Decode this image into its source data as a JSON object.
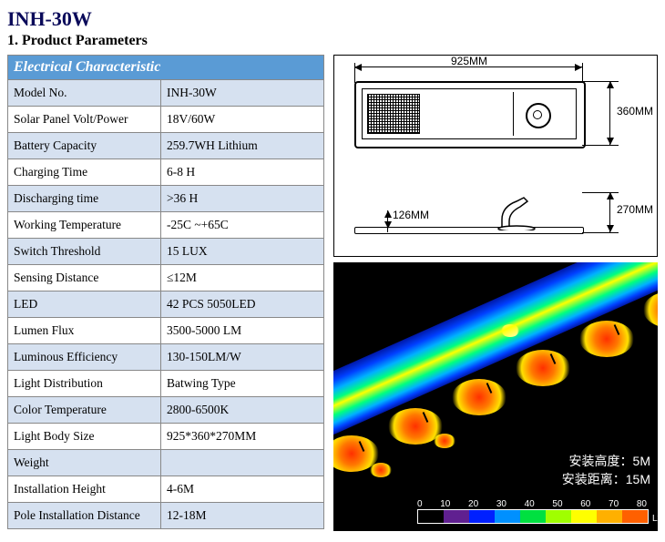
{
  "title": "INH-30W",
  "section": "1. Product Parameters",
  "table": {
    "header": "Electrical Characteristic",
    "rows": [
      {
        "label": "Model No.",
        "value": "INH-30W"
      },
      {
        "label": "Solar Panel Volt/Power",
        "value": "18V/60W"
      },
      {
        "label": "Battery Capacity",
        "value": "259.7WH Lithium"
      },
      {
        "label": "Charging Time",
        "value": "6-8 H"
      },
      {
        "label": "Discharging time",
        "value": ">36 H"
      },
      {
        "label": "Working Temperature",
        "value": "-25C ~+65C"
      },
      {
        "label": "Switch Threshold",
        "value": "15 LUX"
      },
      {
        "label": "Sensing Distance",
        "value": "≤12M"
      },
      {
        "label": "LED",
        "value": "42 PCS 5050LED"
      },
      {
        "label": "Lumen Flux",
        "value": "3500-5000 LM"
      },
      {
        "label": "Luminous Efficiency",
        "value": "130-150LM/W"
      },
      {
        "label": "Light Distribution",
        "value": "Batwing Type"
      },
      {
        "label": "Color Temperature",
        "value": "2800-6500K"
      },
      {
        "label": "Light Body Size",
        "value": "925*360*270MM"
      },
      {
        "label": "Weight",
        "value": ""
      },
      {
        "label": "Installation Height",
        "value": "4-6M"
      },
      {
        "label": "Pole Installation Distance",
        "value": "12-18M"
      }
    ]
  },
  "drawing": {
    "width_label": "925MM",
    "height_label": "360MM",
    "side_height_label": "270MM",
    "small_dim_label": "126MM"
  },
  "heatmap": {
    "line1": "安装高度：5M",
    "line2": "安装距离：15M",
    "scale_colors": [
      "#000000",
      "#602090",
      "#0020ff",
      "#0090ff",
      "#00e040",
      "#a0ff00",
      "#ffff00",
      "#ffb000",
      "#ff6000"
    ],
    "scale_ticks": [
      "0",
      "10",
      "20",
      "30",
      "40",
      "50",
      "60",
      "70",
      "80"
    ],
    "scale_unit": "Lx"
  }
}
